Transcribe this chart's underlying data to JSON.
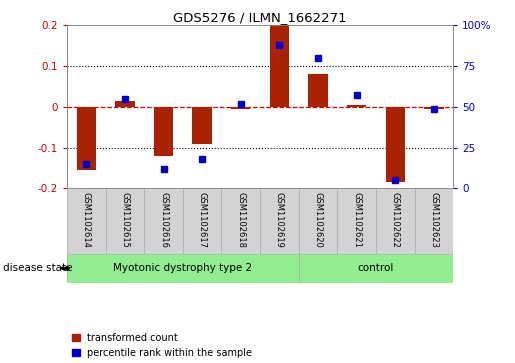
{
  "title": "GDS5276 / ILMN_1662271",
  "samples": [
    "GSM1102614",
    "GSM1102615",
    "GSM1102616",
    "GSM1102617",
    "GSM1102618",
    "GSM1102619",
    "GSM1102620",
    "GSM1102621",
    "GSM1102622",
    "GSM1102623"
  ],
  "transformed_count": [
    -0.155,
    0.015,
    -0.12,
    -0.09,
    -0.005,
    0.2,
    0.08,
    0.005,
    -0.185,
    -0.005
  ],
  "percentile_rank": [
    15,
    55,
    12,
    18,
    52,
    88,
    80,
    57,
    5,
    49
  ],
  "ylim_left": [
    -0.2,
    0.2
  ],
  "ylim_right": [
    0,
    100
  ],
  "yticks_left": [
    -0.2,
    -0.1,
    0.0,
    0.1,
    0.2
  ],
  "yticks_right": [
    0,
    25,
    50,
    75,
    100
  ],
  "ytick_labels_left": [
    "-0.2",
    "-0.1",
    "0",
    "0.1",
    "0.2"
  ],
  "ytick_labels_right": [
    "0",
    "25",
    "50",
    "75",
    "100%"
  ],
  "bar_color": "#aa2200",
  "dot_color": "#0000cc",
  "zero_line_color": "#cc0000",
  "grid_color": "#000000",
  "disease_groups": [
    {
      "label": "Myotonic dystrophy type 2",
      "start": 0,
      "end": 6,
      "color": "#90ee90"
    },
    {
      "label": "control",
      "start": 6,
      "end": 10,
      "color": "#90ee90"
    }
  ],
  "disease_state_label": "disease state",
  "legend_items": [
    {
      "color": "#aa2200",
      "label": "transformed count"
    },
    {
      "color": "#0000cc",
      "label": "percentile rank within the sample"
    }
  ],
  "bar_width": 0.5,
  "sample_box_color": "#d3d3d3",
  "sample_box_edge_color": "#aaaaaa"
}
